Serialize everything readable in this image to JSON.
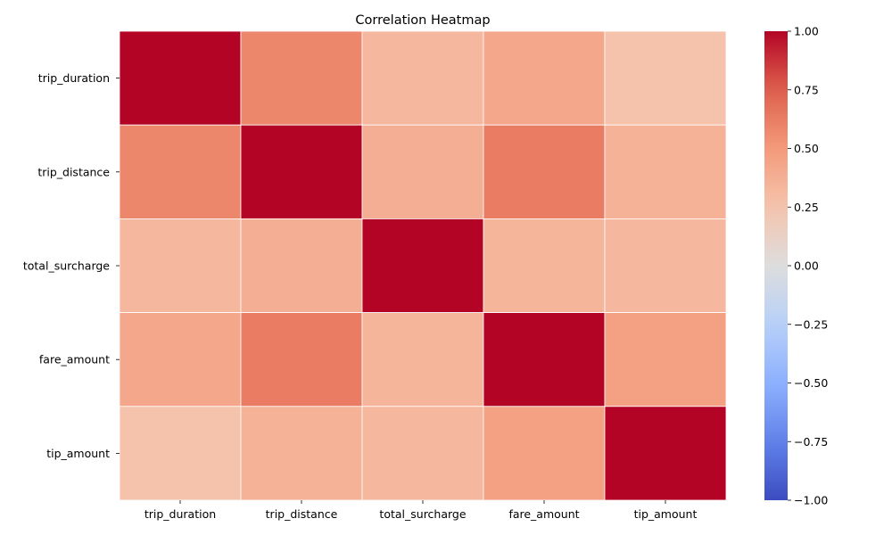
{
  "chart_data": {
    "type": "heatmap",
    "title": "Correlation Heatmap",
    "x_labels": [
      "trip_duration",
      "trip_distance",
      "total_surcharge",
      "fare_amount",
      "tip_amount"
    ],
    "y_labels": [
      "trip_duration",
      "trip_distance",
      "total_surcharge",
      "fare_amount",
      "tip_amount"
    ],
    "matrix": [
      [
        1.0,
        0.58,
        0.32,
        0.42,
        0.26
      ],
      [
        0.58,
        1.0,
        0.38,
        0.63,
        0.36
      ],
      [
        0.32,
        0.38,
        1.0,
        0.34,
        0.32
      ],
      [
        0.42,
        0.63,
        0.34,
        1.0,
        0.46
      ],
      [
        0.26,
        0.36,
        0.32,
        0.46,
        1.0
      ]
    ],
    "colormap": "coolwarm",
    "vmin": -1.0,
    "vmax": 1.0,
    "grid_line_color": "#ffffff",
    "colorbar": {
      "ticks": [
        1.0,
        0.75,
        0.5,
        0.25,
        0.0,
        -0.25,
        -0.5,
        -0.75,
        -1.0
      ],
      "tick_labels": [
        "1.00",
        "0.75",
        "0.50",
        "0.25",
        "0.00",
        "−0.25",
        "−0.50",
        "−0.75",
        "−1.00"
      ]
    }
  }
}
